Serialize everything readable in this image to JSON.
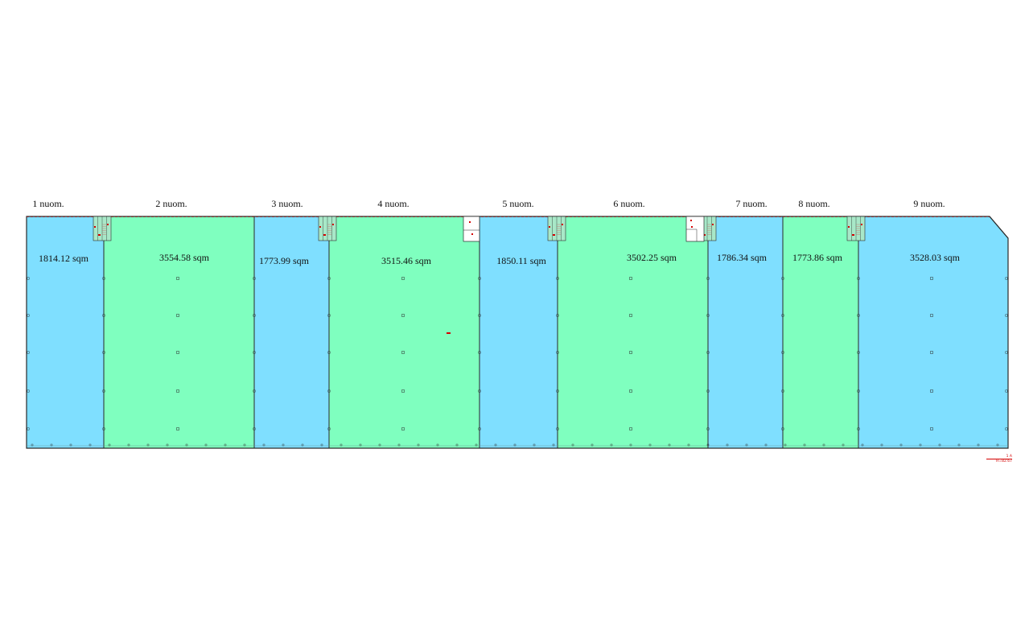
{
  "units": [
    {
      "title": "1 nuom.",
      "area": "1814.12 sqm",
      "fill": "#7fdfff"
    },
    {
      "title": "2 nuom.",
      "area": "3554.58 sqm",
      "fill": "#7fffbf"
    },
    {
      "title": "3 nuom.",
      "area": "1773.99 sqm",
      "fill": "#7fdfff"
    },
    {
      "title": "4 nuom.",
      "area": "3515.46 sqm",
      "fill": "#7fffbf"
    },
    {
      "title": "5 nuom.",
      "area": "1850.11 sqm",
      "fill": "#7fdfff"
    },
    {
      "title": "6 nuom.",
      "area": "3502.25 sqm",
      "fill": "#7fffbf"
    },
    {
      "title": "7 nuom.",
      "area": "1786.34 sqm",
      "fill": "#7fdfff"
    },
    {
      "title": "8 nuom.",
      "area": "1773.86 sqm",
      "fill": "#7fffbf"
    },
    {
      "title": "9 nuom.",
      "area": "3528.03 sqm",
      "fill": "#7fdfff"
    }
  ],
  "corner_note": {
    "line1": "1 A",
    "line2": "H=82.67"
  },
  "colors": {
    "outline": "#2a2a2a",
    "annotation": "#d40000"
  }
}
